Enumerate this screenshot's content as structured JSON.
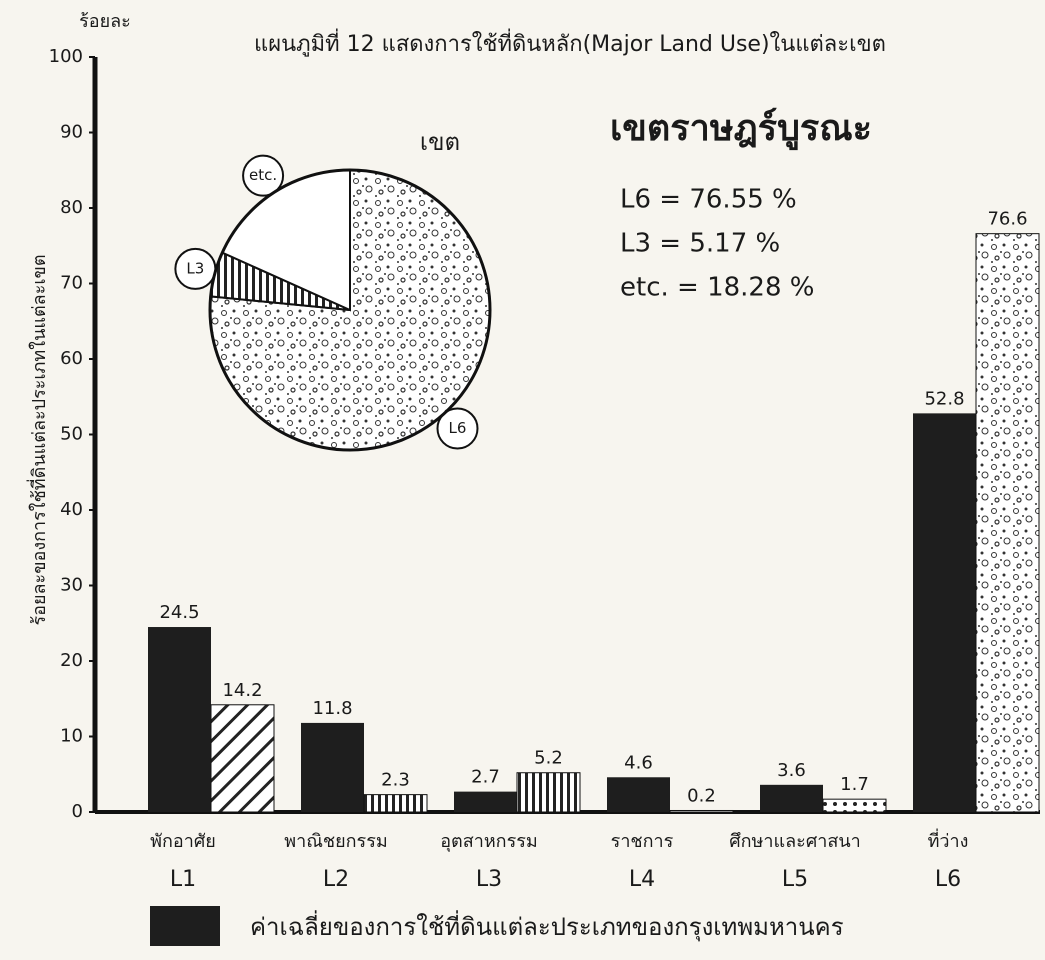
{
  "chart_data": [
    {
      "type": "bar",
      "title": "แผนภูมิที่ 12 แสดงการใช้ที่ดินหลัก(Major Land Use)ในแต่ละเขต",
      "y_unit": "ร้อยละ",
      "y_label": "ร้อยละของการใช้ที่ดินแต่ละประเภทในแต่ละเขต",
      "categories": [
        "L1",
        "L2",
        "L3",
        "L4",
        "L5",
        "L6"
      ],
      "category_names": [
        "พักอาศัย",
        "พาณิชยกรรม",
        "อุตสาหกรรม",
        "ราชการ",
        "ศึกษาและศาสนา",
        "ที่ว่าง"
      ],
      "series": [
        {
          "name": "ค่าเฉลี่ยของการใช้ที่ดินแต่ละประเภทของกรุงเทพมหานคร",
          "color": "#1e1e1e",
          "values": [
            24.5,
            11.8,
            2.7,
            4.6,
            3.6,
            52.8
          ]
        },
        {
          "color": "#ffffff",
          "patterns": [
            "diagonal",
            "vertical",
            "vertical",
            "none",
            "dots",
            "speckle"
          ],
          "values": [
            14.2,
            2.3,
            5.2,
            0.2,
            1.7,
            76.6
          ]
        }
      ],
      "ylim": [
        0,
        100
      ],
      "yticks": [
        0,
        10,
        20,
        30,
        40,
        50,
        60,
        70,
        80,
        90,
        100
      ],
      "grid": false,
      "legend": "bottom"
    },
    {
      "type": "pie",
      "title": "เขต",
      "subtitle": "เขตราษฎร์บูรณะ",
      "categories": [
        "L6",
        "L3",
        "etc."
      ],
      "values": [
        76.55,
        5.17,
        18.28
      ],
      "value_labels": [
        "L6 = 76.55 %",
        "L3 = 5.17 %",
        "etc. = 18.28 %"
      ],
      "patterns": [
        "speckle",
        "vertical",
        "none"
      ]
    }
  ]
}
